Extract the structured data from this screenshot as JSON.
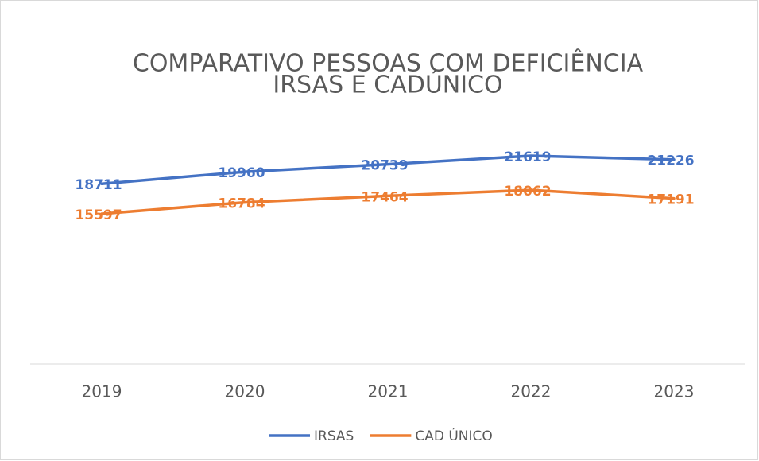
{
  "chart_data": {
    "type": "line",
    "title_lines": [
      "COMPARATIVO PESSOAS COM DEFICIÊNCIA",
      "IRSAS E CADÚNICO"
    ],
    "categories": [
      "2019",
      "2020",
      "2021",
      "2022",
      "2023"
    ],
    "series": [
      {
        "name": "IRSAS",
        "color": "#4472c4",
        "values": [
          18711,
          19960,
          20739,
          21619,
          21226
        ]
      },
      {
        "name": "CAD ÚNICO",
        "color": "#ed7d31",
        "values": [
          15597,
          16784,
          17464,
          18062,
          17191
        ]
      }
    ],
    "ylim": [
      0,
      25000
    ],
    "legend": "bottom"
  }
}
